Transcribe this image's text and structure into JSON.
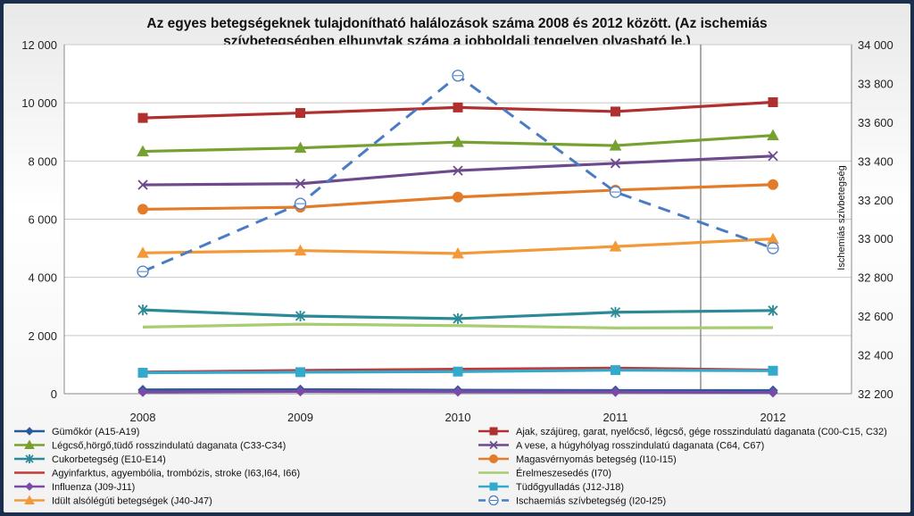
{
  "chart_data": {
    "type": "line",
    "title_lines": [
      "Az egyes betegségeknek tulajdonítható halálozások száma 2008 és 2012 között. (Az ischemiás",
      "szívbetegségben elhunytak száma a jobboldali tengelyen olvasható le.)"
    ],
    "xlabel": "",
    "ylabel": "",
    "y2label": "Ischemiás szívbetegség",
    "categories": [
      "2008",
      "2009",
      "2010",
      "2011",
      "2012"
    ],
    "ylim": [
      0,
      12000
    ],
    "yticks": [
      0,
      2000,
      4000,
      6000,
      8000,
      10000,
      12000
    ],
    "yticklabels": [
      "0",
      "2 000",
      "4 000",
      "6 000",
      "8 000",
      "10 000",
      "12 000"
    ],
    "y2lim": [
      32200,
      34000
    ],
    "y2ticks": [
      32200,
      32400,
      32600,
      32800,
      33000,
      33200,
      33400,
      33600,
      33800,
      34000
    ],
    "y2ticklabels": [
      "32 200",
      "32 400",
      "32 600",
      "32 800",
      "33 000",
      "33 200",
      "33 400",
      "33 600",
      "33 800",
      "34 000"
    ],
    "grid": true,
    "legend_position": "bottom",
    "series": [
      {
        "name": "Gümőkór (A15-A19)",
        "values": [
          130,
          140,
          120,
          110,
          110
        ],
        "color": "#2a5a9a",
        "marker": "diamond",
        "axis": "left"
      },
      {
        "name": "Ajak, szájüreg, garat, nyelőcső, légcső, gége rosszindulatú daganata (C00-C15, C32)",
        "values": [
          9480,
          9650,
          9840,
          9700,
          10020
        ],
        "color": "#b03030",
        "marker": "square",
        "axis": "left"
      },
      {
        "name": "Légcső,hörgő,tüdő rosszindulatú daganata (C33-C34)",
        "values": [
          8330,
          8450,
          8650,
          8530,
          8880
        ],
        "color": "#76a030",
        "marker": "triangle",
        "axis": "left"
      },
      {
        "name": "A vese, a húgyhólyag rosszindulatú daganata (C64, C67)",
        "values": [
          7180,
          7220,
          7670,
          7920,
          8170
        ],
        "color": "#6c4a8c",
        "marker": "x",
        "axis": "left"
      },
      {
        "name": "Cukorbetegség (E10-E14)",
        "values": [
          2880,
          2670,
          2580,
          2800,
          2860
        ],
        "color": "#2b8a96",
        "marker": "asterisk",
        "axis": "left"
      },
      {
        "name": "Magasvérnyomás betegség (I10-I15)",
        "values": [
          6340,
          6410,
          6760,
          7000,
          7190
        ],
        "color": "#e27c2a",
        "marker": "circle",
        "axis": "left"
      },
      {
        "name": "Agyinfarktus, agyembólia, trombózis, stroke (I63,I64, I66)",
        "values": [
          740,
          800,
          840,
          880,
          810
        ],
        "color": "#c43838",
        "marker": "none",
        "axis": "left"
      },
      {
        "name": "Érelmeszesedés (I70)",
        "values": [
          2290,
          2390,
          2340,
          2260,
          2270
        ],
        "color": "#a8cc70",
        "marker": "none",
        "axis": "left"
      },
      {
        "name": "Influenza (J09-J11)",
        "values": [
          60,
          80,
          70,
          60,
          40
        ],
        "color": "#7a4aa8",
        "marker": "diamond",
        "axis": "left"
      },
      {
        "name": "Tüdőgyulladás (J12-J18)",
        "values": [
          720,
          740,
          760,
          810,
          790
        ],
        "color": "#33aacc",
        "marker": "square",
        "axis": "left"
      },
      {
        "name": "Idült alsólégúti betegségek (J40-J47)",
        "values": [
          4840,
          4920,
          4820,
          5060,
          5320
        ],
        "color": "#f29a3a",
        "marker": "triangle",
        "axis": "left"
      },
      {
        "name": "Ischaemiás szívbetegség (I20-I25)",
        "values": [
          32830,
          33180,
          33840,
          33240,
          32950
        ],
        "color": "#4a7cc4",
        "marker": "circle-open",
        "dashed": true,
        "axis": "right"
      }
    ]
  }
}
